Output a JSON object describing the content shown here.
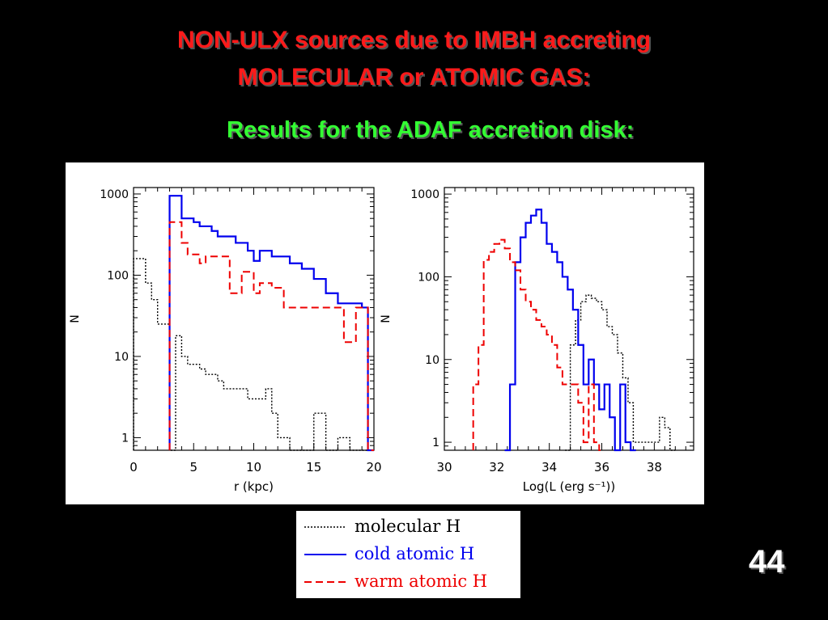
{
  "slide": {
    "title_line1": "NON-ULX sources due to IMBH accreting",
    "title_line2": "MOLECULAR or ATOMIC GAS:",
    "subtitle": "Results for the ADAF accretion disk:",
    "page_number": "44",
    "colors": {
      "background": "#000000",
      "title": "#ff1a1a",
      "subtitle": "#33ff33",
      "page_number": "#ffffff"
    }
  },
  "legend": {
    "items": [
      {
        "label": "molecular H",
        "color": "#000000",
        "style": "dotted"
      },
      {
        "label": "cold atomic H",
        "color": "#0000ee",
        "style": "solid"
      },
      {
        "label": "warm atomic H",
        "color": "#ee0000",
        "style": "dashed"
      }
    ]
  },
  "chart_data": [
    {
      "type": "line",
      "step": true,
      "xlabel": "r (kpc)",
      "ylabel": "N",
      "xlim": [
        0,
        20
      ],
      "ylim": [
        0.7,
        1200
      ],
      "yscale": "log",
      "xticks": [
        0,
        5,
        10,
        15,
        20
      ],
      "xtick_labels": [
        "0",
        "5",
        "10",
        "15",
        "20"
      ],
      "yticks": [
        1,
        10,
        100,
        1000
      ],
      "ytick_labels": [
        "1",
        "10",
        "100",
        "1000"
      ],
      "series": [
        {
          "name": "molecular H",
          "color": "#000000",
          "dash": "dotted",
          "x": [
            0.5,
            1,
            1.5,
            2,
            2.5,
            3,
            3.5,
            4,
            4.5,
            5,
            5.5,
            6,
            6.5,
            7,
            7.5,
            8,
            8.5,
            9,
            9.5,
            10,
            10.5,
            11,
            11.5,
            12,
            12.5,
            13,
            13.5,
            14,
            14.5,
            15,
            15.5,
            16,
            16.5,
            17,
            17.5,
            18,
            18.5,
            19,
            19.5,
            20
          ],
          "y": [
            160,
            160,
            80,
            50,
            25,
            25,
            0.7,
            18,
            10,
            8,
            8,
            7,
            6,
            6,
            5,
            4,
            4,
            4,
            4,
            3,
            3,
            3,
            4,
            2,
            1,
            1,
            0.7,
            0.7,
            0.7,
            0.7,
            2,
            2,
            0.7,
            0.7,
            1,
            1,
            0.7,
            0.7,
            0.7,
            0.7
          ]
        },
        {
          "name": "cold atomic H",
          "color": "#0000ee",
          "dash": "solid",
          "x": [
            3.5,
            4,
            4.5,
            5,
            5.5,
            6,
            6.5,
            7,
            7.5,
            8,
            8.5,
            9,
            9.5,
            10,
            10.5,
            11,
            11.5,
            12,
            12.5,
            13,
            13.5,
            14,
            14.5,
            15,
            15.5,
            16,
            16.5,
            17,
            17.5,
            18,
            18.5,
            19,
            19.5,
            20
          ],
          "y": [
            950,
            950,
            500,
            500,
            450,
            400,
            400,
            350,
            300,
            300,
            300,
            250,
            250,
            200,
            150,
            200,
            200,
            170,
            170,
            170,
            140,
            140,
            120,
            120,
            90,
            90,
            60,
            60,
            45,
            45,
            45,
            45,
            40,
            0.7
          ]
        },
        {
          "name": "warm atomic H",
          "color": "#ee0000",
          "dash": "dashed",
          "x": [
            3.5,
            4,
            4.5,
            5,
            5.5,
            6,
            6.5,
            7,
            7.5,
            8,
            8.5,
            9,
            9.5,
            10,
            10.5,
            11,
            11.5,
            12,
            12.5,
            13,
            13.5,
            14,
            14.5,
            15,
            15.5,
            16,
            16.5,
            17,
            17.5,
            18,
            18.5,
            19,
            19.5,
            20
          ],
          "y": [
            450,
            450,
            250,
            180,
            180,
            140,
            170,
            170,
            170,
            170,
            60,
            60,
            110,
            110,
            60,
            80,
            80,
            70,
            70,
            40,
            40,
            40,
            40,
            40,
            40,
            40,
            40,
            40,
            40,
            15,
            15,
            40,
            40,
            0.7
          ]
        }
      ]
    },
    {
      "type": "line",
      "step": true,
      "xlabel": "Log(L (erg s⁻¹))",
      "ylabel": "N",
      "xlim": [
        30,
        39.5
      ],
      "ylim": [
        0.8,
        1200
      ],
      "yscale": "log",
      "xticks": [
        30,
        32,
        34,
        36,
        38
      ],
      "xtick_labels": [
        "30",
        "32",
        "34",
        "36",
        "38"
      ],
      "yticks": [
        1,
        10,
        100,
        1000
      ],
      "ytick_labels": [
        "1",
        "10",
        "100",
        "1000"
      ],
      "series": [
        {
          "name": "molecular H",
          "color": "#000000",
          "dash": "dotted",
          "x": [
            34.8,
            35,
            35.2,
            35.4,
            35.6,
            35.8,
            36,
            36.2,
            36.4,
            36.6,
            36.8,
            37,
            37.2,
            37.4,
            37.6,
            37.8,
            38,
            38.2,
            38.4,
            38.6,
            38.8
          ],
          "y": [
            0.8,
            15,
            30,
            50,
            60,
            55,
            50,
            40,
            25,
            20,
            12,
            6,
            3,
            1,
            1,
            1,
            1,
            1,
            2,
            1.5,
            0.8
          ]
        },
        {
          "name": "cold atomic H",
          "color": "#0000ee",
          "dash": "solid",
          "x": [
            32.5,
            32.7,
            32.9,
            33.1,
            33.3,
            33.5,
            33.7,
            33.9,
            34.1,
            34.3,
            34.5,
            34.7,
            34.9,
            35.1,
            35.3,
            35.5,
            35.7,
            35.9,
            36.1,
            36.3,
            36.5,
            36.7,
            36.9,
            37.1,
            37.3
          ],
          "y": [
            0.8,
            5,
            150,
            300,
            450,
            550,
            650,
            450,
            250,
            200,
            150,
            100,
            70,
            40,
            15,
            5,
            10,
            5,
            2.5,
            5,
            2,
            0.8,
            5,
            1,
            0.8
          ]
        },
        {
          "name": "warm atomic H",
          "color": "#ee0000",
          "dash": "dashed",
          "x": [
            31.3,
            31.5,
            31.7,
            31.9,
            32.1,
            32.3,
            32.5,
            32.7,
            32.9,
            33.1,
            33.3,
            33.5,
            33.7,
            33.9,
            34.1,
            34.3,
            34.5,
            34.7,
            34.9,
            35.1,
            35.3,
            35.5,
            35.7,
            35.9,
            36.1
          ],
          "y": [
            5,
            15,
            160,
            200,
            250,
            280,
            220,
            150,
            120,
            70,
            50,
            40,
            30,
            25,
            20,
            15,
            8,
            5,
            5,
            5,
            3,
            1,
            5,
            1,
            0.8
          ]
        }
      ]
    }
  ]
}
